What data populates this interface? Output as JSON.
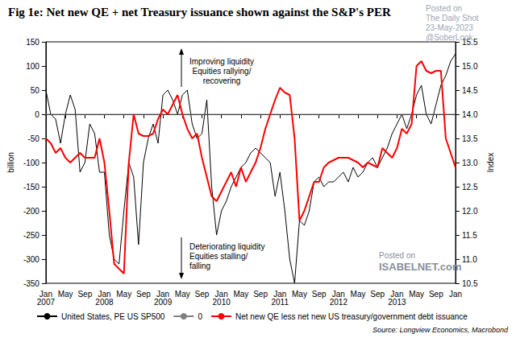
{
  "chart_data": {
    "type": "line",
    "title": "Fig 1e: Net new QE + net Treasury issuance shown against the S&P's PER",
    "source": "Source: Longview Economics, Macrobond",
    "y_label": "billion",
    "y2_label": "Index",
    "x": [
      "Jan 2007",
      null,
      null,
      null,
      "May",
      null,
      null,
      null,
      "Sep",
      null,
      null,
      null,
      "Jan 2008",
      null,
      null,
      null,
      "May",
      null,
      null,
      null,
      "Sep",
      null,
      null,
      null,
      "Jan 2009",
      null,
      null,
      null,
      "May",
      null,
      null,
      null,
      "Sep",
      null,
      null,
      null,
      "Jan 2010",
      null,
      null,
      null,
      "May",
      null,
      null,
      null,
      "Sep",
      null,
      null,
      null,
      "Jan 2011",
      null,
      null,
      null,
      "May",
      null,
      null,
      null,
      "Sep",
      null,
      null,
      null,
      "Jan 2012",
      null,
      null,
      null,
      "May",
      null,
      null,
      null,
      "Sep",
      null,
      null,
      null,
      "Jan 2013",
      null,
      null,
      null,
      "May",
      null,
      null,
      null,
      "Sep",
      null,
      null,
      null,
      "Jan"
    ],
    "series": [
      {
        "name": "United States, PE US SP500",
        "color": "#000000",
        "axis": "y2",
        "line_style": "solid",
        "values": [
          14.5,
          14.0,
          13.9,
          13.4,
          14.0,
          14.4,
          14.1,
          12.8,
          13.0,
          13.8,
          13.6,
          12.8,
          12.8,
          11.5,
          11.0,
          10.9,
          12.0,
          13.0,
          12.7,
          11.3,
          13.0,
          13.5,
          13.8,
          13.4,
          14.4,
          14.5,
          14.3,
          14.0,
          14.4,
          14.5,
          13.8,
          13.5,
          13.6,
          14.3,
          12.5,
          11.5,
          12.0,
          12.2,
          12.5,
          12.7,
          12.9,
          13.0,
          13.2,
          13.3,
          13.2,
          13.1,
          13.0,
          12.3,
          12.8,
          12.0,
          11.0,
          10.5,
          11.8,
          11.7,
          12.0,
          12.6,
          12.7,
          12.5,
          12.6,
          12.6,
          12.7,
          12.8,
          12.6,
          12.9,
          12.7,
          12.8,
          13.0,
          13.1,
          12.9,
          13.1,
          13.3,
          13.6,
          13.8,
          14.0,
          13.7,
          14.0,
          14.4,
          14.6,
          14.0,
          13.8,
          14.2,
          14.6,
          14.8,
          15.1,
          15.25
        ]
      },
      {
        "name": "0",
        "color": "#808080",
        "line_style": "solid",
        "values": [
          0,
          0,
          0,
          0,
          0,
          0,
          0,
          0,
          0,
          0,
          0,
          0,
          0,
          0,
          0,
          0,
          0,
          0,
          0,
          0,
          0,
          0,
          0,
          0,
          0,
          0,
          0,
          0,
          0,
          0,
          0,
          0,
          0,
          0,
          0,
          0,
          0,
          0,
          0,
          0,
          0,
          0,
          0,
          0,
          0,
          0,
          0,
          0,
          0,
          0,
          0,
          0,
          0,
          0,
          0,
          0,
          0,
          0,
          0,
          0,
          0,
          0,
          0,
          0,
          0,
          0,
          0,
          0,
          0,
          0,
          0,
          0,
          0,
          0,
          0,
          0,
          0,
          0,
          0,
          0,
          0,
          0,
          0,
          0,
          0
        ]
      },
      {
        "name": "Net new QE less net new US treasury/government debt issuance",
        "color": "#ff0000",
        "line_style": "solid",
        "values": [
          -50,
          -60,
          -80,
          -70,
          -90,
          -100,
          -90,
          -80,
          -90,
          -90,
          -90,
          -50,
          -100,
          -200,
          -310,
          -320,
          -330,
          -100,
          0,
          -40,
          -45,
          -45,
          -40,
          -10,
          10,
          0,
          20,
          40,
          0,
          -30,
          -50,
          -40,
          -90,
          -130,
          -170,
          -180,
          -160,
          -140,
          -120,
          -150,
          -110,
          -140,
          -120,
          -100,
          -70,
          -30,
          0,
          30,
          55,
          45,
          40,
          -50,
          -220,
          -200,
          -170,
          -140,
          -140,
          -110,
          -100,
          -95,
          -90,
          -90,
          -90,
          -95,
          -100,
          -110,
          -100,
          -105,
          -110,
          -70,
          -80,
          -90,
          -70,
          -30,
          -40,
          -20,
          100,
          110,
          90,
          85,
          90,
          90,
          -50,
          -80,
          -110
        ]
      }
    ],
    "ylim": [
      -350,
      150
    ],
    "yticks": [
      -350,
      -300,
      -250,
      -200,
      -150,
      -100,
      -50,
      0,
      50,
      100,
      150
    ],
    "y2lim": [
      10.5,
      15.5
    ],
    "y2ticks": [
      10.5,
      {
        "value": 11,
        "label": "11.0"
      },
      11.5,
      {
        "value": 12,
        "label": "12.0"
      },
      12.5,
      {
        "value": 13,
        "label": "13.0"
      },
      13.5,
      {
        "value": 14,
        "label": "14.0"
      },
      14.5,
      {
        "value": 15,
        "label": "15.0"
      },
      15.5
    ],
    "grid": false,
    "legend": "bottom",
    "annotations": [
      [
        "Improving liquidity",
        "Equities rallying/",
        "recovering"
      ],
      [
        "Deteriorating liquidity",
        "Equities stalling/",
        "falling"
      ]
    ],
    "watermarks": [
      [
        "Posted on",
        "The Daily Shot",
        "23-May-2023",
        "@SoberLook"
      ],
      [
        "Posted on",
        "ISABELNET.com"
      ]
    ]
  }
}
